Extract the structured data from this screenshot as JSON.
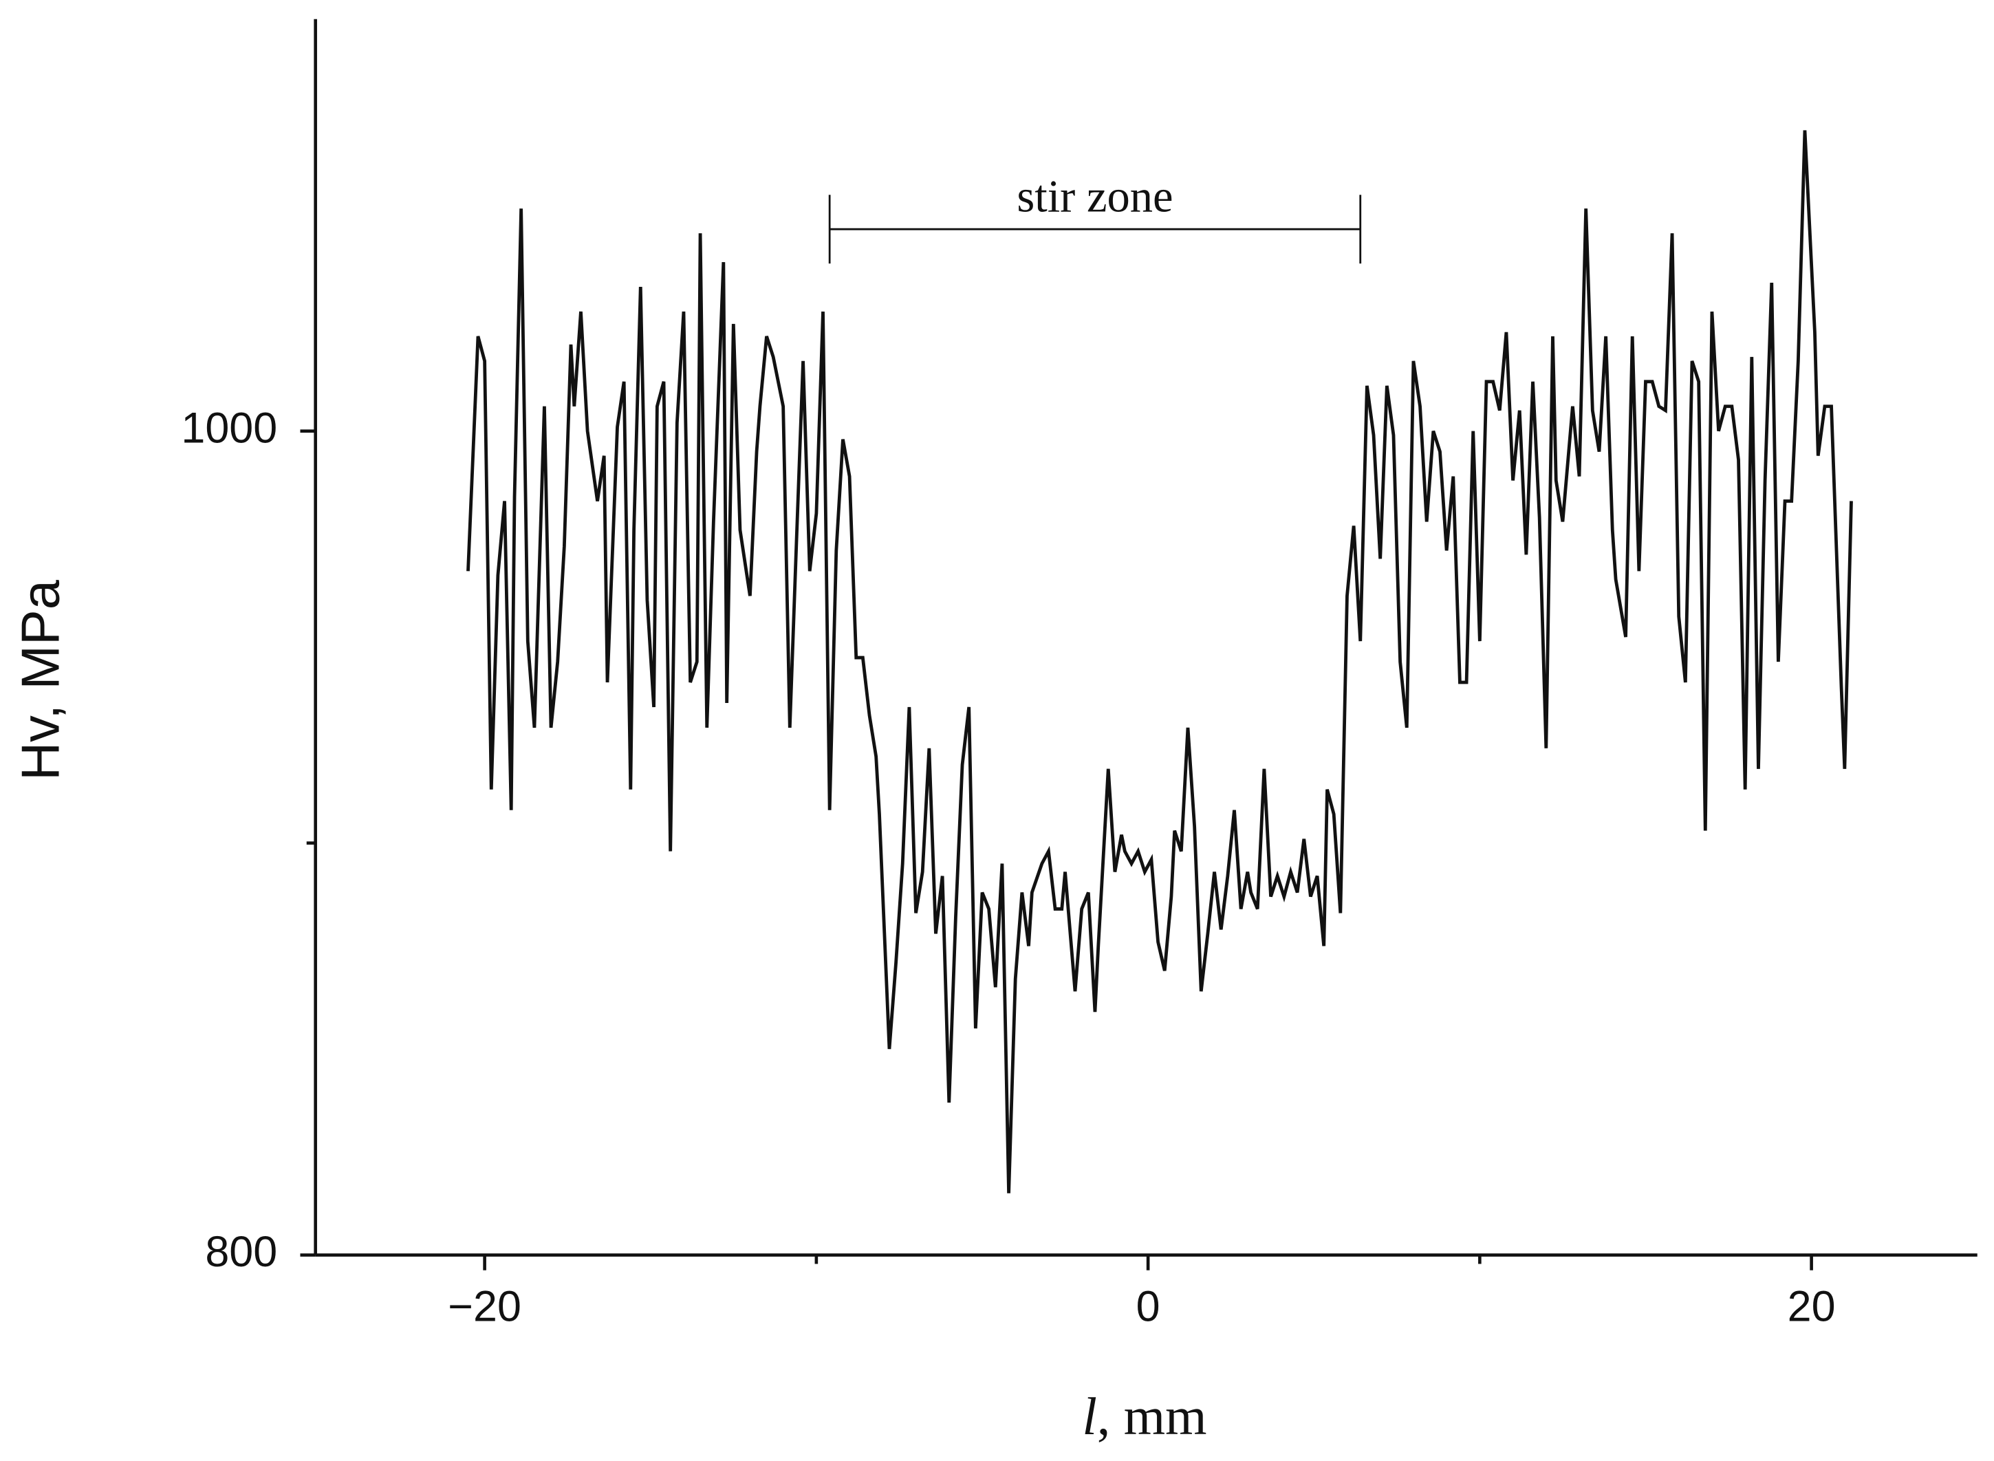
{
  "chart_data": {
    "type": "line",
    "y_label": "Hv, MPa",
    "x_label": [
      "l",
      ", mm"
    ],
    "annotation": {
      "text": "stir zone",
      "x": [
        -9.6,
        6.4
      ],
      "y": 1049
    },
    "xlim": [
      -25.1,
      25
    ],
    "ylim": [
      800,
      1100
    ],
    "xticks": [
      {
        "value": -20,
        "label": "−20"
      },
      0,
      20
    ],
    "xticks_minor": [
      -10,
      10
    ],
    "yticks": [
      800,
      1000
    ],
    "yticks_minor": [
      900
    ],
    "color": "#111111",
    "x": [
      -20.5,
      -20.2,
      -20.0,
      -19.8,
      -19.6,
      -19.4,
      -19.2,
      -19.1,
      -18.9,
      -18.7,
      -18.5,
      -18.2,
      -18.0,
      -17.8,
      -17.6,
      -17.4,
      -17.3,
      -17.1,
      -16.9,
      -16.6,
      -16.4,
      -16.3,
      -16.0,
      -15.8,
      -15.6,
      -15.5,
      -15.3,
      -15.1,
      -14.9,
      -14.8,
      -14.6,
      -14.4,
      -14.2,
      -14.0,
      -13.8,
      -13.6,
      -13.5,
      -13.3,
      -13.1,
      -12.8,
      -12.7,
      -12.5,
      -12.3,
      -12.0,
      -11.8,
      -11.7,
      -11.5,
      -11.3,
      -11.0,
      -10.8,
      -10.6,
      -10.4,
      -10.2,
      -10.0,
      -9.8,
      -9.6,
      -9.4,
      -9.2,
      -9.0,
      -8.8,
      -8.6,
      -8.4,
      -8.2,
      -8.1,
      -7.8,
      -7.6,
      -7.4,
      -7.2,
      -7.0,
      -6.8,
      -6.6,
      -6.4,
      -6.2,
      -6.0,
      -5.8,
      -5.6,
      -5.4,
      -5.2,
      -5.0,
      -4.8,
      -4.6,
      -4.4,
      -4.2,
      -4.0,
      -3.8,
      -3.6,
      -3.5,
      -3.2,
      -3.0,
      -2.8,
      -2.6,
      -2.5,
      -2.2,
      -2.0,
      -1.8,
      -1.6,
      -1.5,
      -1.2,
      -1.0,
      -0.8,
      -0.7,
      -0.5,
      -0.3,
      -0.1,
      0.1,
      0.3,
      0.5,
      0.7,
      0.8,
      1.0,
      1.2,
      1.4,
      1.6,
      1.8,
      2.0,
      2.2,
      2.4,
      2.6,
      2.8,
      3.0,
      3.1,
      3.3,
      3.5,
      3.7,
      3.9,
      4.1,
      4.3,
      4.5,
      4.7,
      4.9,
      5.1,
      5.3,
      5.4,
      5.6,
      5.8,
      6.0,
      6.2,
      6.4,
      6.6,
      6.8,
      7.0,
      7.2,
      7.4,
      7.6,
      7.8,
      8.0,
      8.2,
      8.4,
      8.6,
      8.8,
      9.0,
      9.2,
      9.4,
      9.6,
      9.8,
      10.0,
      10.2,
      10.4,
      10.6,
      10.8,
      11.0,
      11.2,
      11.4,
      11.6,
      11.8,
      12.0,
      12.2,
      12.3,
      12.5,
      12.8,
      13.0,
      13.2,
      13.4,
      13.6,
      13.8,
      14.0,
      14.1,
      14.4,
      14.6,
      14.8,
      15.0,
      15.2,
      15.4,
      15.6,
      15.8,
      16.0,
      16.2,
      16.4,
      16.6,
      16.8,
      17.0,
      17.2,
      17.4,
      17.6,
      17.8,
      18.0,
      18.2,
      18.4,
      18.6,
      18.8,
      19.0,
      19.2,
      19.4,
      19.6,
      19.8,
      20.1,
      20.2,
      20.4,
      20.6,
      20.9,
      21.0,
      21.2
    ],
    "values": [
      966,
      1023,
      1017,
      913,
      965,
      983,
      908,
      984,
      1054,
      949,
      928,
      1006,
      928,
      944,
      972,
      1021,
      1006,
      1029,
      1000,
      983,
      994,
      939,
      1001,
      1012,
      913,
      976,
      1035,
      959,
      933,
      1006,
      1012,
      898,
      1002,
      1029,
      939,
      944,
      1048,
      928,
      978,
      1041,
      934,
      1026,
      976,
      960,
      995,
      1006,
      1023,
      1018,
      1006,
      928,
      973,
      1017,
      966,
      980,
      1029,
      908,
      971,
      998,
      989,
      945,
      945,
      931,
      921,
      907,
      850,
      871,
      895,
      933,
      883,
      893,
      923,
      878,
      892,
      837,
      882,
      919,
      933,
      855,
      888,
      884,
      865,
      895,
      815,
      867,
      888,
      875,
      888,
      895,
      898,
      884,
      884,
      893,
      864,
      884,
      888,
      859,
      875,
      918,
      893,
      902,
      898,
      895,
      898,
      893,
      896,
      876,
      869,
      887,
      903,
      898,
      928,
      904,
      864,
      878,
      893,
      879,
      892,
      908,
      884,
      893,
      888,
      884,
      918,
      887,
      892,
      887,
      893,
      888,
      901,
      887,
      892,
      875,
      913,
      907,
      883,
      960,
      977,
      949,
      1011,
      999,
      969,
      1011,
      999,
      944,
      928,
      1017,
      1006,
      978,
      1000,
      995,
      971,
      989,
      939,
      939,
      1000,
      949,
      1012,
      1012,
      1005,
      1024,
      988,
      1005,
      970,
      1012,
      979,
      923,
      1023,
      988,
      978,
      1006,
      989,
      1054,
      1005,
      995,
      1023,
      976,
      964,
      950,
      1023,
      966,
      1012,
      1012,
      1006,
      1005,
      1048,
      955,
      939,
      1017,
      1012,
      903,
      1029,
      1000,
      1006,
      1006,
      993,
      913,
      1018,
      918,
      988,
      1036,
      944,
      983,
      983,
      1017,
      1073,
      1024,
      994,
      1006,
      1006,
      938,
      918,
      983
    ]
  }
}
